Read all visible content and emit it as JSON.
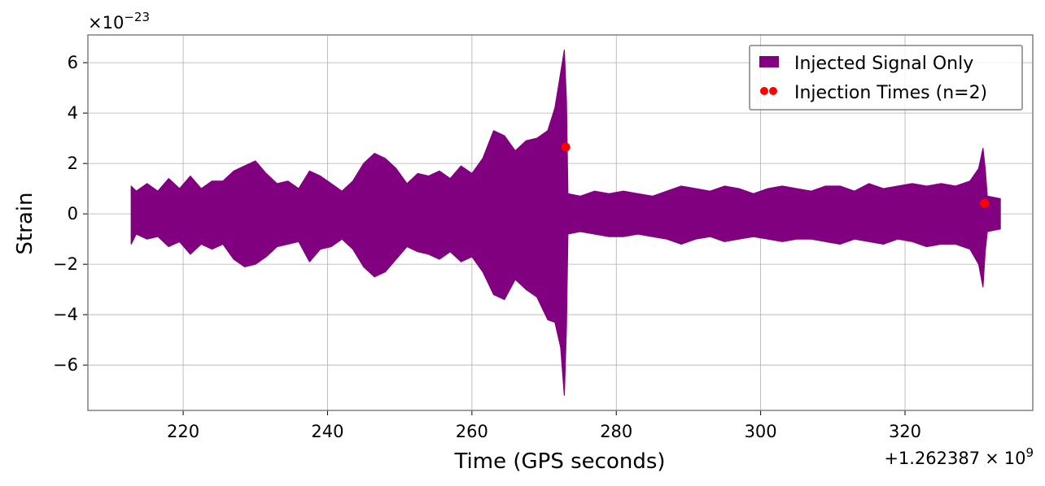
{
  "chart_data": {
    "type": "line",
    "xlabel": "Time (GPS seconds)",
    "ylabel": "Strain",
    "x_offset_label": "+1.262387",
    "x_offset_times": "×",
    "x_offset_base": "10",
    "x_offset_exp": "9",
    "y_scale_label": "×10",
    "y_scale_exp": "−23",
    "xlim": [
      206.8,
      337.7
    ],
    "ylim": [
      -7.8,
      7.1
    ],
    "xticks": [
      220,
      240,
      260,
      280,
      300,
      320
    ],
    "xtick_labels": [
      "220",
      "240",
      "260",
      "280",
      "300",
      "320"
    ],
    "yticks": [
      6,
      4,
      2,
      0,
      -2,
      -4,
      -6
    ],
    "ytick_labels": [
      "6",
      "4",
      "2",
      "0",
      "−2",
      "−4",
      "−6"
    ],
    "grid": true,
    "legend_position": "top-right",
    "colors": {
      "signal": "#800080",
      "injection": "#ff0000",
      "grid": "#b0b0b0",
      "frame": "#808080"
    },
    "series": [
      {
        "name": "Injected Signal Only",
        "kind": "envelope",
        "x": [
          212.8,
          213.5,
          215,
          216.5,
          218,
          219.5,
          221,
          222.5,
          224,
          225.5,
          227,
          228.5,
          230,
          231.5,
          233,
          234.5,
          236,
          237.5,
          239,
          240.5,
          242,
          243.5,
          245,
          246.5,
          248,
          249.5,
          251,
          252.5,
          254,
          255.5,
          257,
          258.5,
          260,
          261.5,
          263,
          264.5,
          266,
          267.5,
          269,
          270.5,
          271.5,
          272.3,
          272.8,
          273.1,
          273.3,
          275,
          277,
          279,
          281,
          283,
          285,
          287,
          289,
          291,
          293,
          295,
          297,
          299,
          301,
          303,
          305,
          307,
          309,
          311,
          313,
          315,
          317,
          319,
          321,
          323,
          325,
          327,
          329,
          330.2,
          330.8,
          331.1,
          331.4,
          333.2
        ],
        "upper": [
          1.1,
          0.9,
          1.2,
          0.9,
          1.4,
          1.0,
          1.5,
          1.0,
          1.3,
          1.3,
          1.7,
          1.9,
          2.1,
          1.6,
          1.2,
          1.3,
          1.0,
          1.7,
          1.5,
          1.2,
          0.9,
          1.3,
          2.0,
          2.4,
          2.2,
          1.8,
          1.2,
          1.6,
          1.5,
          1.7,
          1.4,
          1.9,
          1.6,
          2.2,
          3.3,
          3.1,
          2.5,
          2.9,
          3.0,
          3.3,
          4.2,
          5.6,
          6.5,
          4.5,
          0.8,
          0.7,
          0.9,
          0.8,
          0.9,
          0.8,
          0.7,
          0.9,
          1.1,
          1.0,
          0.9,
          1.1,
          1.0,
          0.8,
          1.0,
          1.1,
          1.0,
          0.9,
          1.1,
          1.1,
          0.9,
          1.2,
          1.0,
          1.1,
          1.2,
          1.1,
          1.2,
          1.1,
          1.3,
          1.8,
          2.6,
          1.8,
          0.7,
          0.6
        ],
        "lower": [
          -1.2,
          -0.8,
          -1.0,
          -0.9,
          -1.3,
          -1.1,
          -1.6,
          -1.2,
          -1.4,
          -1.2,
          -1.8,
          -2.1,
          -2.0,
          -1.7,
          -1.3,
          -1.2,
          -1.1,
          -1.9,
          -1.4,
          -1.3,
          -1.0,
          -1.4,
          -2.1,
          -2.5,
          -2.3,
          -1.8,
          -1.3,
          -1.5,
          -1.6,
          -1.8,
          -1.5,
          -1.9,
          -1.7,
          -2.3,
          -3.2,
          -3.4,
          -2.6,
          -3.0,
          -3.3,
          -4.2,
          -4.3,
          -5.3,
          -7.2,
          -4.5,
          -0.8,
          -0.7,
          -0.8,
          -0.9,
          -0.9,
          -0.8,
          -0.9,
          -1.0,
          -1.2,
          -1.0,
          -0.9,
          -1.1,
          -1.0,
          -0.9,
          -1.0,
          -1.1,
          -1.0,
          -1.0,
          -1.1,
          -1.2,
          -1.0,
          -1.1,
          -1.2,
          -1.0,
          -1.1,
          -1.3,
          -1.2,
          -1.2,
          -1.4,
          -2.0,
          -2.9,
          -1.5,
          -0.7,
          -0.6
        ]
      },
      {
        "name": "Injection Times (n=2)",
        "kind": "scatter",
        "x": [
          273.0,
          331.0
        ],
        "y": [
          2.65,
          0.42
        ]
      }
    ]
  }
}
